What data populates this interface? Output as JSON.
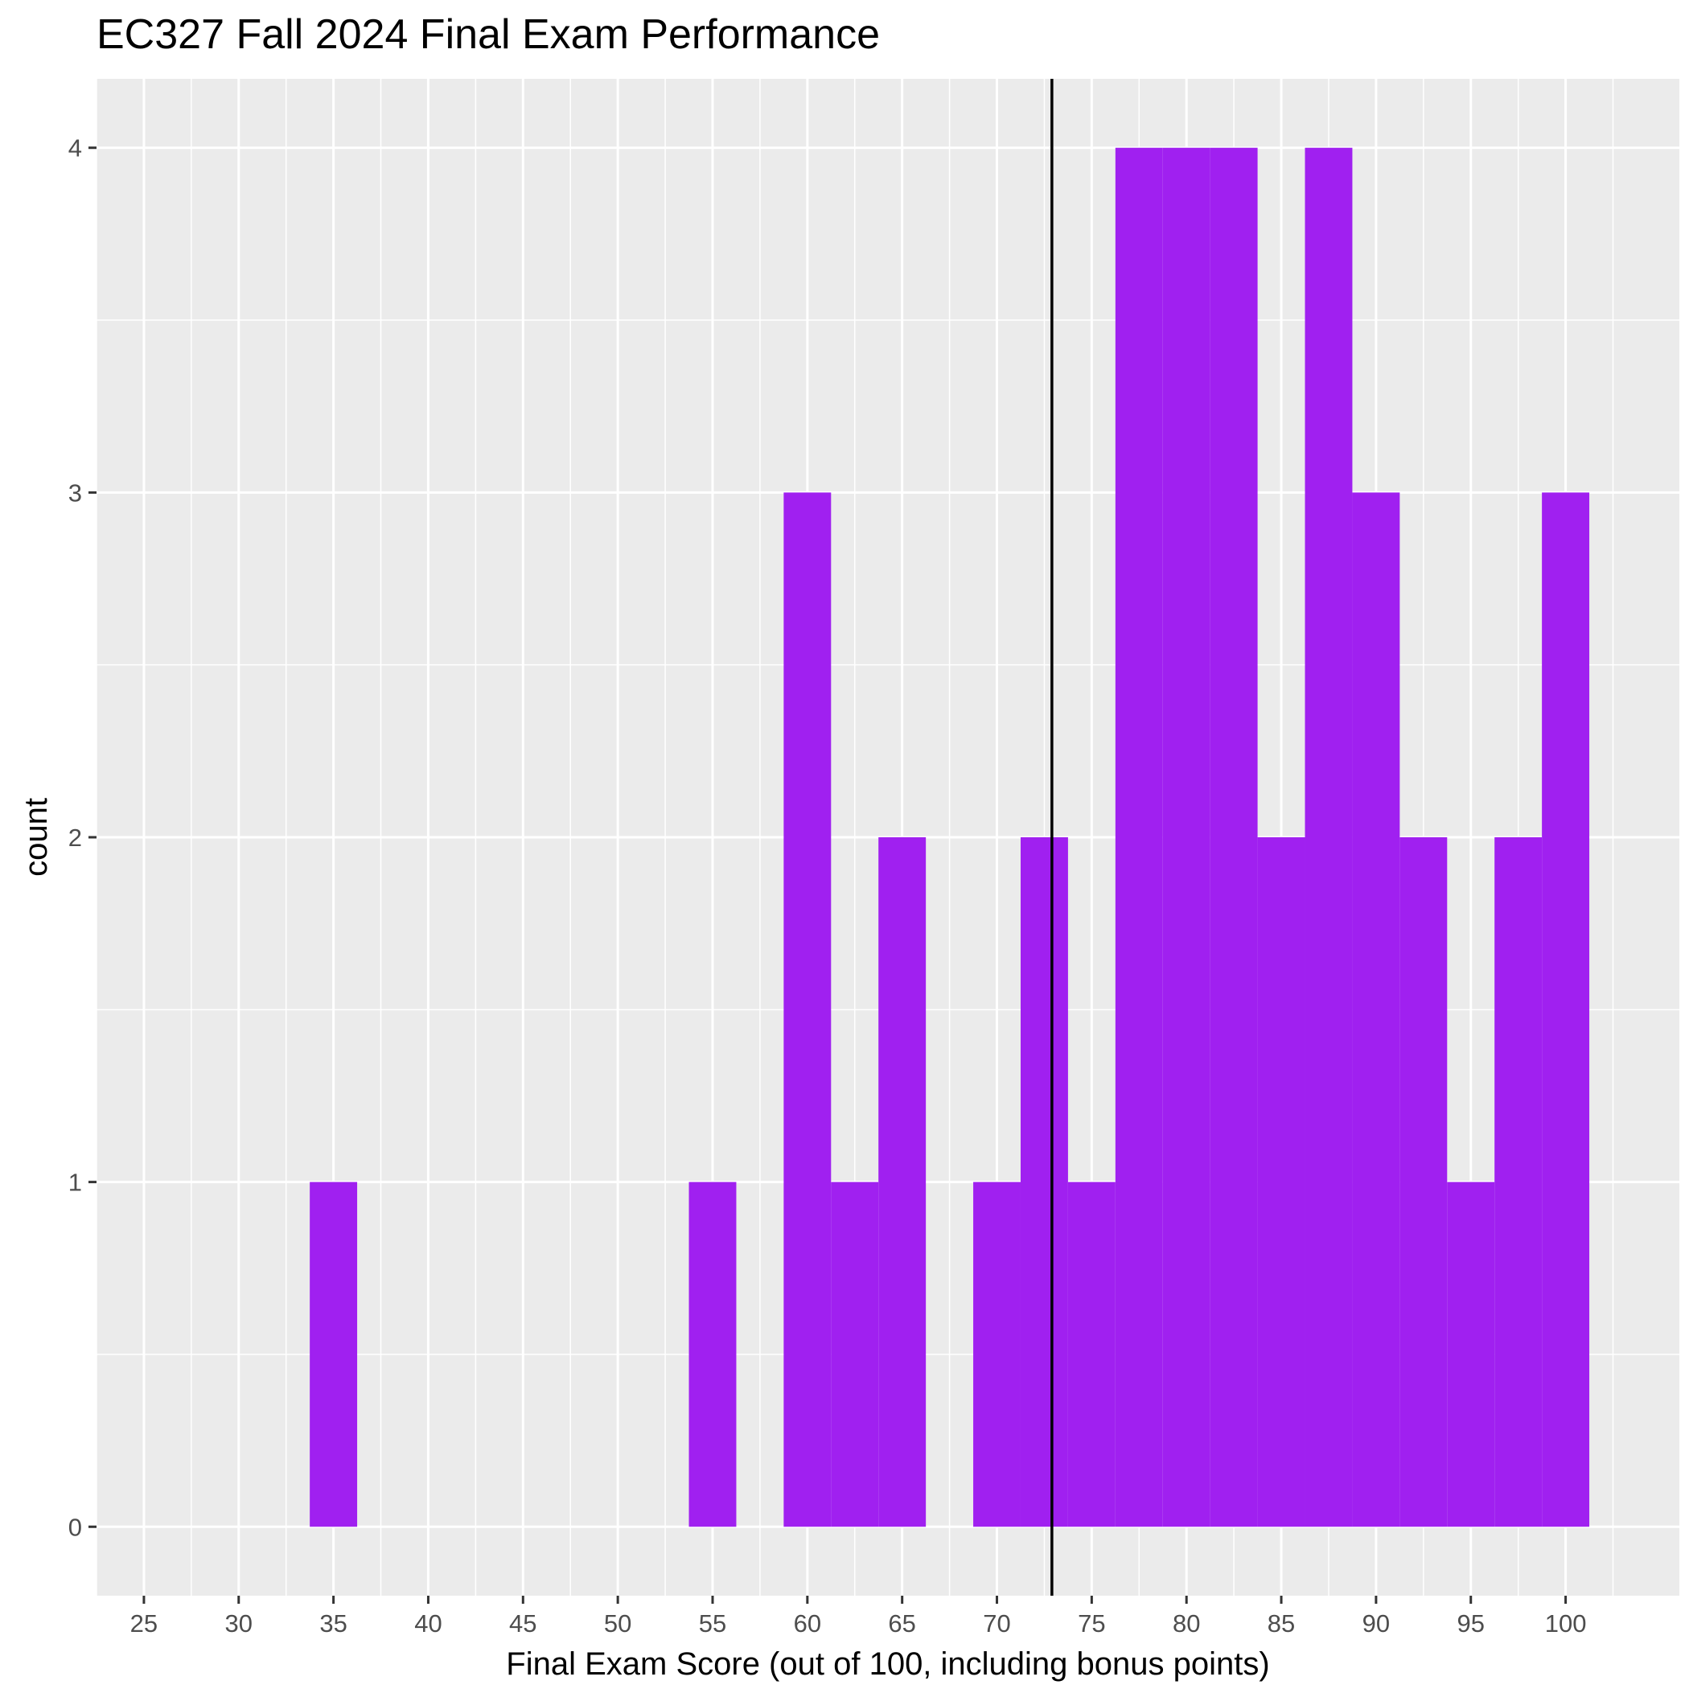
{
  "chart_data": {
    "type": "bar",
    "subtype": "histogram",
    "title": "EC327 Fall 2024 Final Exam Performance",
    "xlabel": "Final Exam Score (out of 100, including bonus points)",
    "ylabel": "count",
    "xlim": [
      22.5,
      106
    ],
    "ylim": [
      -0.2,
      4.2
    ],
    "x_ticks": [
      25,
      30,
      35,
      40,
      45,
      50,
      55,
      60,
      65,
      70,
      75,
      80,
      85,
      90,
      95,
      100
    ],
    "y_ticks": [
      0,
      1,
      2,
      3,
      4
    ],
    "bin_width": 2.5,
    "bins": [
      {
        "x0": 33.75,
        "x1": 36.25,
        "count": 1
      },
      {
        "x0": 53.75,
        "x1": 56.25,
        "count": 1
      },
      {
        "x0": 58.75,
        "x1": 61.25,
        "count": 3
      },
      {
        "x0": 61.25,
        "x1": 63.75,
        "count": 1
      },
      {
        "x0": 63.75,
        "x1": 66.25,
        "count": 2
      },
      {
        "x0": 68.75,
        "x1": 71.25,
        "count": 1
      },
      {
        "x0": 71.25,
        "x1": 73.75,
        "count": 2
      },
      {
        "x0": 73.75,
        "x1": 76.25,
        "count": 1
      },
      {
        "x0": 76.25,
        "x1": 78.75,
        "count": 4
      },
      {
        "x0": 78.75,
        "x1": 81.25,
        "count": 4
      },
      {
        "x0": 81.25,
        "x1": 83.75,
        "count": 4
      },
      {
        "x0": 83.75,
        "x1": 86.25,
        "count": 2
      },
      {
        "x0": 86.25,
        "x1": 88.75,
        "count": 4
      },
      {
        "x0": 88.75,
        "x1": 91.25,
        "count": 3
      },
      {
        "x0": 91.25,
        "x1": 93.75,
        "count": 2
      },
      {
        "x0": 93.75,
        "x1": 96.25,
        "count": 1
      },
      {
        "x0": 96.25,
        "x1": 98.75,
        "count": 2
      },
      {
        "x0": 98.75,
        "x1": 101.25,
        "count": 3
      }
    ],
    "reference_line": {
      "orientation": "vertical",
      "x": 72.9,
      "color": "#000000"
    },
    "bar_color": "#a020f0",
    "panel_background": "#ebebeb",
    "grid": true,
    "legend": "none"
  }
}
